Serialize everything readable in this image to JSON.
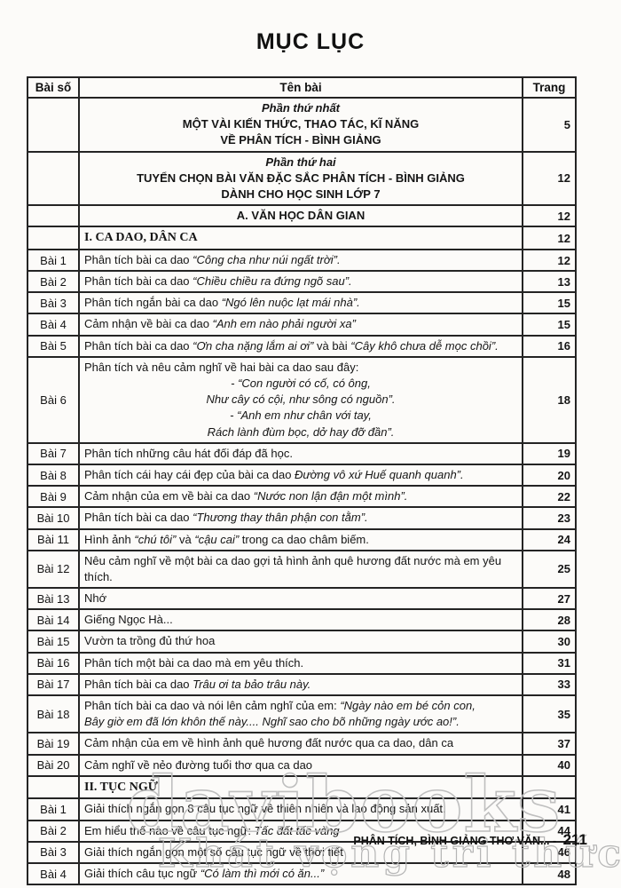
{
  "page_title": "MỤC LỤC",
  "table": {
    "col_headers": {
      "num": "Bài số",
      "title": "Tên bài",
      "page": "Trang"
    },
    "rows": [
      {
        "num": "",
        "page": "5",
        "lines": [
          {
            "align": "center",
            "segs": [
              {
                "t": "Phần thứ nhất",
                "b": true,
                "i": true
              }
            ]
          },
          {
            "align": "center",
            "segs": [
              {
                "t": "MỘT VÀI KIẾN THỨC, THAO TÁC, KĨ NĂNG",
                "b": true
              }
            ]
          },
          {
            "align": "center",
            "segs": [
              {
                "t": "VỀ PHÂN TÍCH - BÌNH GIẢNG",
                "b": true
              }
            ]
          }
        ]
      },
      {
        "num": "",
        "page": "12",
        "lines": [
          {
            "align": "center",
            "segs": [
              {
                "t": "Phần thứ hai",
                "b": true,
                "i": true
              }
            ]
          },
          {
            "align": "center",
            "segs": [
              {
                "t": "TUYỂN CHỌN BÀI VĂN ĐẶC SẮC PHÂN TÍCH - BÌNH GIẢNG",
                "b": true
              }
            ]
          },
          {
            "align": "center",
            "segs": [
              {
                "t": "DÀNH CHO HỌC SINH LỚP 7",
                "b": true
              }
            ]
          }
        ]
      },
      {
        "num": "",
        "page": "12",
        "lines": [
          {
            "align": "center",
            "segs": [
              {
                "t": "A. VĂN HỌC DÂN GIAN",
                "b": true
              }
            ]
          }
        ]
      },
      {
        "num": "",
        "page": "12",
        "lines": [
          {
            "segs": [
              {
                "t": "I. CA DAO, DÂN CA",
                "b": true,
                "serif": true
              }
            ]
          }
        ]
      },
      {
        "num": "Bài 1",
        "page": "12",
        "lines": [
          {
            "segs": [
              {
                "t": "Phân tích bài ca dao "
              },
              {
                "t": "“Công cha như núi ngất trời”.",
                "i": true
              }
            ]
          }
        ]
      },
      {
        "num": "Bài 2",
        "page": "13",
        "lines": [
          {
            "segs": [
              {
                "t": "Phân tích bài ca dao "
              },
              {
                "t": "“Chiều chiều ra đứng ngõ sau”.",
                "i": true
              }
            ]
          }
        ]
      },
      {
        "num": "Bài 3",
        "page": "15",
        "lines": [
          {
            "segs": [
              {
                "t": "Phân tích ngắn bài ca dao "
              },
              {
                "t": "“Ngó lên nuộc lạt mái nhà”.",
                "i": true
              }
            ]
          }
        ]
      },
      {
        "num": "Bài 4",
        "page": "15",
        "lines": [
          {
            "segs": [
              {
                "t": "Cảm nhận về bài ca dao "
              },
              {
                "t": "“Anh em nào phải người xa”",
                "i": true
              }
            ]
          }
        ]
      },
      {
        "num": "Bài 5",
        "page": "16",
        "lines": [
          {
            "segs": [
              {
                "t": "Phân tích bài ca dao "
              },
              {
                "t": "“Ơn cha nặng lắm ai ơi”",
                "i": true
              },
              {
                "t": " và bài "
              },
              {
                "t": "“Cây khô chưa dễ mọc chồi”.",
                "i": true
              }
            ]
          }
        ]
      },
      {
        "num": "Bài 6",
        "page": "18",
        "lines": [
          {
            "segs": [
              {
                "t": "Phân tích và nêu cảm nghĩ về hai bài ca dao sau đây:"
              }
            ]
          },
          {
            "align": "center",
            "segs": [
              {
                "t": "-  “Con người có cố, có ông,",
                "i": true
              }
            ]
          },
          {
            "align": "center",
            "segs": [
              {
                "t": "Như cây có cội, như sông có nguồn”.",
                "i": true
              }
            ]
          },
          {
            "align": "center",
            "segs": [
              {
                "t": "-  “Anh em như chân với tay,",
                "i": true
              }
            ]
          },
          {
            "align": "center",
            "segs": [
              {
                "t": "Rách lành đùm bọc, dở hay đỡ đần”.",
                "i": true
              }
            ]
          }
        ]
      },
      {
        "num": "Bài 7",
        "page": "19",
        "lines": [
          {
            "segs": [
              {
                "t": "Phân tích những câu hát đối đáp đã học."
              }
            ]
          }
        ]
      },
      {
        "num": "Bài 8",
        "page": "20",
        "lines": [
          {
            "segs": [
              {
                "t": "Phân tích cái hay cái đẹp của bài ca dao "
              },
              {
                "t": "Đường vô xứ Huế quanh quanh”.",
                "i": true
              }
            ]
          }
        ]
      },
      {
        "num": "Bài 9",
        "page": "22",
        "lines": [
          {
            "segs": [
              {
                "t": "Cảm nhận của em về bài ca dao "
              },
              {
                "t": "“Nước non lận đận một mình”.",
                "i": true
              }
            ]
          }
        ]
      },
      {
        "num": "Bài 10",
        "page": "23",
        "lines": [
          {
            "segs": [
              {
                "t": "Phân tích bài ca dao "
              },
              {
                "t": "“Thương thay thân phận con tằm”.",
                "i": true
              }
            ]
          }
        ]
      },
      {
        "num": "Bài 11",
        "page": "24",
        "lines": [
          {
            "segs": [
              {
                "t": "Hình ảnh "
              },
              {
                "t": "“chú tôi”",
                "i": true
              },
              {
                "t": " và "
              },
              {
                "t": "“cậu cai”",
                "i": true
              },
              {
                "t": " trong ca dao châm biếm."
              }
            ]
          }
        ]
      },
      {
        "num": "Bài 12",
        "page": "25",
        "lines": [
          {
            "segs": [
              {
                "t": "Nêu cảm nghĩ về một bài ca dao gợi tả hình ảnh quê hương đất nước mà em yêu thích."
              }
            ]
          }
        ]
      },
      {
        "num": "Bài 13",
        "page": "27",
        "lines": [
          {
            "segs": [
              {
                "t": "Nhớ"
              }
            ]
          }
        ]
      },
      {
        "num": "Bài 14",
        "page": "28",
        "lines": [
          {
            "segs": [
              {
                "t": "Giếng Ngọc Hà..."
              }
            ]
          }
        ]
      },
      {
        "num": "Bài 15",
        "page": "30",
        "lines": [
          {
            "segs": [
              {
                "t": "Vườn ta trồng đủ thứ hoa"
              }
            ]
          }
        ]
      },
      {
        "num": "Bài 16",
        "page": "31",
        "lines": [
          {
            "segs": [
              {
                "t": "Phân tích một bài ca dao mà em yêu thích."
              }
            ]
          }
        ]
      },
      {
        "num": "Bài 17",
        "page": "33",
        "lines": [
          {
            "segs": [
              {
                "t": "Phân tích bài ca dao "
              },
              {
                "t": "Trâu ơi ta bảo trâu này.",
                "i": true
              }
            ]
          }
        ]
      },
      {
        "num": "Bài 18",
        "page": "35",
        "lines": [
          {
            "segs": [
              {
                "t": "Phân tích bài ca dao và nói lên cảm nghĩ của em: "
              },
              {
                "t": "“Ngày nào em bé cỏn con,",
                "i": true
              }
            ]
          },
          {
            "segs": [
              {
                "t": "Bây giờ em đã lớn khôn thế này.... Nghĩ sao cho bõ những ngày ước ao!”.",
                "i": true
              }
            ]
          }
        ]
      },
      {
        "num": "Bài 19",
        "page": "37",
        "lines": [
          {
            "segs": [
              {
                "t": "Cảm nhận của em về hình ảnh quê hương đất nước qua ca dao, dân ca"
              }
            ]
          }
        ]
      },
      {
        "num": "Bài 20",
        "page": "40",
        "lines": [
          {
            "segs": [
              {
                "t": "Cảm nghĩ về nẻo đường tuổi thơ qua ca dao"
              }
            ]
          }
        ]
      },
      {
        "num": "",
        "page": "",
        "lines": [
          {
            "segs": [
              {
                "t": "II. TỤC NGỮ",
                "b": true,
                "serif": true
              }
            ]
          }
        ]
      },
      {
        "num": "Bài 1",
        "page": "41",
        "lines": [
          {
            "segs": [
              {
                "t": "Giải thích ngắn gọn 8 câu tục ngữ về thiên nhiên và lao động sản xuất."
              }
            ]
          }
        ]
      },
      {
        "num": "Bài 2",
        "page": "44",
        "lines": [
          {
            "segs": [
              {
                "t": "Em hiểu thế nào về câu tục ngữ: "
              },
              {
                "t": "Tấc đất tấc vàng",
                "i": true
              }
            ]
          }
        ]
      },
      {
        "num": "Bài 3",
        "page": "46",
        "lines": [
          {
            "segs": [
              {
                "t": "Giải thích ngắn gọn một số câu tục ngữ về thời tiết"
              }
            ]
          }
        ]
      },
      {
        "num": "Bài 4",
        "page": "48",
        "lines": [
          {
            "segs": [
              {
                "t": "Giải thích câu tục ngữ "
              },
              {
                "t": "“Có làm thì mới có ăn...”",
                "i": true
              }
            ]
          }
        ]
      }
    ]
  },
  "footer": {
    "book_title": "PHÂN TÍCH, BÌNH GIẢNG THƠ VĂN... -",
    "page_number": "211"
  },
  "watermarks": {
    "brand": "davibooks",
    "slogan": "Khát vọng tri thức",
    "stroke_color": "#bfbfbf"
  }
}
